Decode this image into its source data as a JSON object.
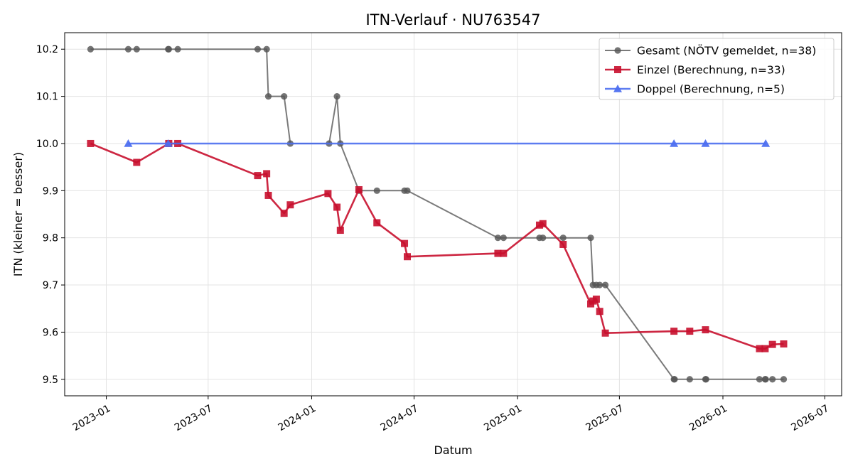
{
  "chart_data": {
    "type": "line",
    "title": "ITN-Verlauf · NU763547",
    "xlabel": "Datum",
    "ylabel": "ITN  (kleiner = besser)",
    "xlim": [
      "2022-10-19",
      "2026-07-31"
    ],
    "ylim": [
      9.465,
      10.235
    ],
    "grid": true,
    "legend_position": "top-right",
    "x_ticks": [
      "2023-01-01",
      "2023-07-01",
      "2024-01-01",
      "2024-07-01",
      "2025-01-01",
      "2025-07-01",
      "2026-01-01",
      "2026-07-01"
    ],
    "x_tick_labels": [
      "2023-01",
      "2023-07",
      "2024-01",
      "2024-07",
      "2025-01",
      "2025-07",
      "2026-01",
      "2026-07"
    ],
    "y_ticks": [
      9.5,
      9.6,
      9.7,
      9.8,
      9.9,
      10.0,
      10.1,
      10.2
    ],
    "y_tick_labels": [
      "9.5",
      "9.6",
      "9.7",
      "9.8",
      "9.9",
      "10.0",
      "10.1",
      "10.2"
    ],
    "series": [
      {
        "name": "Gesamt (NÖTV gemeldet, n=38)",
        "color": "#555555",
        "marker": "circle",
        "points": [
          [
            "2022-12-04",
            10.2
          ],
          [
            "2023-02-09",
            10.2
          ],
          [
            "2023-02-24",
            10.2
          ],
          [
            "2023-04-21",
            10.2
          ],
          [
            "2023-04-22",
            10.2
          ],
          [
            "2023-05-08",
            10.2
          ],
          [
            "2023-09-27",
            10.2
          ],
          [
            "2023-10-13",
            10.2
          ],
          [
            "2023-10-16",
            10.1
          ],
          [
            "2023-11-13",
            10.1
          ],
          [
            "2023-11-24",
            10.0
          ],
          [
            "2024-02-01",
            10.0
          ],
          [
            "2024-02-15",
            10.1
          ],
          [
            "2024-02-21",
            10.0
          ],
          [
            "2024-03-25",
            9.9
          ],
          [
            "2024-04-26",
            9.9
          ],
          [
            "2024-06-14",
            9.9
          ],
          [
            "2024-06-19",
            9.9
          ],
          [
            "2024-11-27",
            9.8
          ],
          [
            "2024-12-07",
            9.8
          ],
          [
            "2025-02-09",
            9.8
          ],
          [
            "2025-02-15",
            9.8
          ],
          [
            "2025-03-23",
            9.8
          ],
          [
            "2025-05-11",
            9.8
          ],
          [
            "2025-05-15",
            9.7
          ],
          [
            "2025-05-21",
            9.7
          ],
          [
            "2025-05-27",
            9.7
          ],
          [
            "2025-06-06",
            9.7
          ],
          [
            "2025-10-06",
            9.5
          ],
          [
            "2025-10-07",
            9.5
          ],
          [
            "2025-11-03",
            9.5
          ],
          [
            "2025-12-01",
            9.5
          ],
          [
            "2025-12-02",
            9.5
          ],
          [
            "2026-03-07",
            9.5
          ],
          [
            "2026-03-17",
            9.5
          ],
          [
            "2026-03-18",
            9.5
          ],
          [
            "2026-03-30",
            9.5
          ],
          [
            "2026-04-19",
            9.5
          ]
        ]
      },
      {
        "name": "Einzel (Berechnung, n=33)",
        "color": "#c8102e",
        "marker": "square",
        "points": [
          [
            "2022-12-04",
            10.0
          ],
          [
            "2023-02-24",
            9.96
          ],
          [
            "2023-04-22",
            10.0
          ],
          [
            "2023-05-08",
            10.0
          ],
          [
            "2023-09-27",
            9.932
          ],
          [
            "2023-10-13",
            9.936
          ],
          [
            "2023-10-16",
            9.89
          ],
          [
            "2023-11-13",
            9.852
          ],
          [
            "2023-11-24",
            9.87
          ],
          [
            "2024-01-30",
            9.894
          ],
          [
            "2024-02-15",
            9.865
          ],
          [
            "2024-02-21",
            9.816
          ],
          [
            "2024-03-25",
            9.902
          ],
          [
            "2024-04-26",
            9.832
          ],
          [
            "2024-06-14",
            9.788
          ],
          [
            "2024-06-19",
            9.76
          ],
          [
            "2024-11-27",
            9.767
          ],
          [
            "2024-12-07",
            9.767
          ],
          [
            "2025-02-09",
            9.827
          ],
          [
            "2025-02-15",
            9.83
          ],
          [
            "2025-03-23",
            9.786
          ],
          [
            "2025-05-11",
            9.66
          ],
          [
            "2025-05-15",
            9.666
          ],
          [
            "2025-05-21",
            9.67
          ],
          [
            "2025-05-27",
            9.644
          ],
          [
            "2025-06-06",
            9.598
          ],
          [
            "2025-10-06",
            9.602
          ],
          [
            "2025-11-03",
            9.602
          ],
          [
            "2025-12-01",
            9.605
          ],
          [
            "2026-03-07",
            9.565
          ],
          [
            "2026-03-17",
            9.565
          ],
          [
            "2026-03-30",
            9.574
          ],
          [
            "2026-04-19",
            9.575
          ]
        ]
      },
      {
        "name": "Doppel (Berechnung, n=5)",
        "color": "#4d6ff0",
        "marker": "triangle",
        "points": [
          [
            "2023-02-09",
            10.0
          ],
          [
            "2023-04-21",
            10.0
          ],
          [
            "2025-10-06",
            10.0
          ],
          [
            "2025-12-01",
            10.0
          ],
          [
            "2026-03-18",
            10.0
          ]
        ]
      }
    ]
  }
}
